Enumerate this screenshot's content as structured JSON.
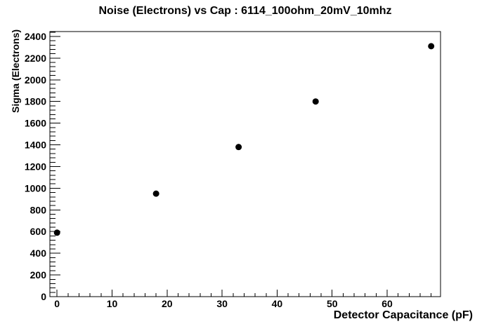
{
  "window": {
    "background_color": "#ffffff"
  },
  "chart_data": {
    "type": "scatter",
    "title": "Noise (Electrons) vs Cap : 6114_100ohm_20mV_10mhz",
    "xlabel": "Detector Capacitance (pF)",
    "ylabel": "Sigma (Electrons)",
    "points": [
      [
        0,
        590
      ],
      [
        18,
        950
      ],
      [
        33,
        1380
      ],
      [
        47,
        1800
      ],
      [
        68,
        2310
      ]
    ],
    "xlim": [
      -1.3,
      69.7
    ],
    "ylim": [
      0,
      2445
    ],
    "x_major_step": 10,
    "x_minor_step": 2,
    "x_tick_labels": [
      "0",
      "10",
      "20",
      "30",
      "40",
      "50",
      "60"
    ],
    "y_major_step": 200,
    "y_minor_step": 40,
    "y_tick_labels": [
      "0",
      "200",
      "400",
      "600",
      "800",
      "1000",
      "1200",
      "1400",
      "1600",
      "1800",
      "2000",
      "2200",
      "2400"
    ],
    "grid": false,
    "legend": "none",
    "marker": {
      "shape": "filled-circle",
      "color": "#000000",
      "radius_px": 4.5
    },
    "axis_color": "#000000",
    "text_color": "#000000",
    "background_color": "#ffffff"
  }
}
